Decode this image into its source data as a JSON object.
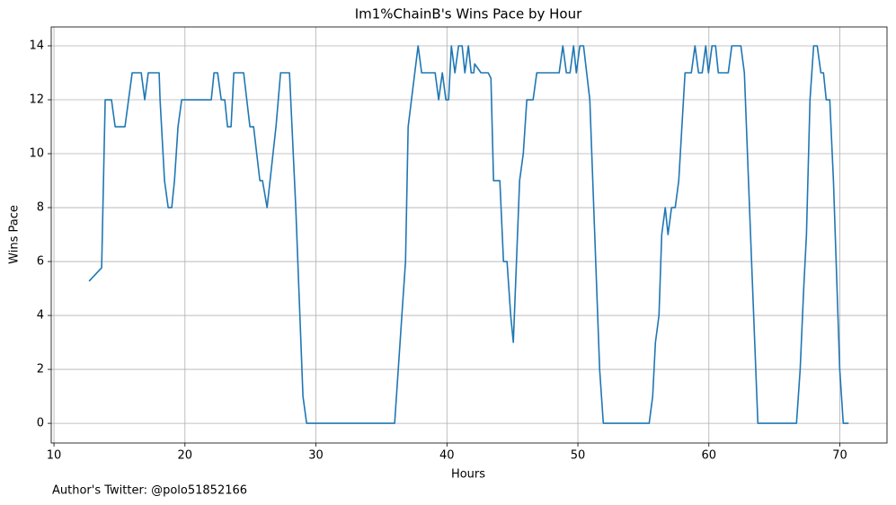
{
  "chart_data": {
    "type": "line",
    "title": "Im1%ChainB's Wins Pace by Hour",
    "x_label": "Hours",
    "y_label": "Wins Pace",
    "annotation": "Author's Twitter: @polo51852166",
    "color": "#1f77b4",
    "grid": true,
    "xlim": [
      9.79,
      73.6
    ],
    "ylim": [
      -0.73,
      14.7
    ],
    "xticks": [
      10,
      20,
      30,
      40,
      50,
      60,
      70
    ],
    "yticks": [
      0,
      2,
      4,
      6,
      8,
      10,
      12,
      14
    ],
    "x": [
      12.68,
      13.64,
      13.91,
      14.39,
      14.67,
      15.42,
      15.97,
      16.66,
      16.93,
      17.2,
      18.03,
      18.1,
      18.44,
      18.72,
      18.99,
      19.2,
      19.47,
      19.75,
      22.01,
      22.22,
      22.49,
      22.77,
      23.04,
      23.25,
      23.52,
      23.73,
      24.48,
      24.96,
      25.24,
      25.72,
      25.92,
      26.27,
      26.95,
      27.3,
      27.98,
      28.46,
      29.01,
      29.29,
      36.01,
      36.56,
      36.84,
      37.04,
      37.8,
      38.07,
      39.1,
      39.37,
      39.65,
      39.92,
      40.13,
      40.34,
      40.61,
      40.89,
      41.16,
      41.37,
      41.64,
      41.85,
      42.05,
      42.12,
      42.6,
      43.15,
      43.36,
      43.56,
      44.04,
      44.32,
      44.59,
      44.87,
      45.07,
      45.55,
      45.83,
      46.1,
      46.58,
      46.86,
      48.57,
      48.85,
      49.12,
      49.4,
      49.67,
      49.88,
      50.15,
      50.43,
      50.91,
      51.66,
      51.94,
      55.44,
      55.71,
      55.92,
      56.19,
      56.4,
      56.67,
      56.88,
      57.15,
      57.43,
      57.7,
      58.18,
      58.66,
      58.94,
      59.21,
      59.49,
      59.76,
      59.97,
      60.24,
      60.51,
      60.72,
      61.48,
      61.75,
      62.44,
      62.71,
      63.26,
      63.74,
      66.69,
      66.97,
      67.24,
      67.45,
      67.72,
      68.0,
      68.27,
      68.55,
      68.75,
      68.96,
      69.23,
      69.51,
      69.99,
      70.26,
      70.67
    ],
    "values": [
      5.27,
      5.77,
      12,
      12,
      11,
      11,
      13,
      13,
      12,
      13,
      13,
      12,
      9,
      8,
      8,
      9,
      11,
      12,
      12,
      13,
      13,
      12,
      12,
      11,
      11,
      13,
      13,
      11,
      11,
      9,
      9,
      8,
      11,
      13,
      13,
      8,
      1,
      0,
      0,
      4,
      6,
      11,
      14,
      13,
      13,
      12,
      13,
      12,
      12,
      14,
      13,
      14,
      14,
      13,
      14,
      13,
      13,
      13.33,
      13,
      13,
      12.8,
      9,
      9,
      6,
      6,
      4,
      3,
      9,
      10,
      12,
      12,
      13,
      13,
      14,
      13,
      13,
      14,
      13,
      14,
      14,
      12,
      2,
      0,
      0,
      1,
      3,
      4,
      7,
      8,
      7,
      8,
      8,
      9,
      13,
      13,
      14,
      13,
      13,
      14,
      13,
      14,
      14,
      13,
      13,
      14,
      14,
      13,
      6,
      0,
      0,
      2,
      5,
      7,
      12,
      14,
      14,
      13,
      13,
      12,
      12,
      9,
      2,
      0,
      0
    ]
  }
}
